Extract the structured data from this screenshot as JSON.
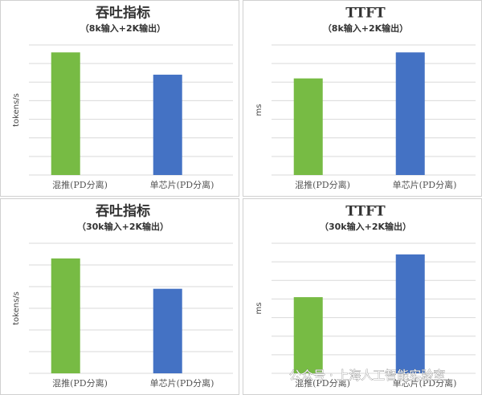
{
  "chart_data": [
    {
      "type": "bar",
      "title": "吞吐指标",
      "subtitle": "（8k输入+2K输出）",
      "y_label": "tokens/s",
      "categories": [
        "混推(PD分离)",
        "单芯片(PD分离)"
      ],
      "values": [
        6.6,
        5.4
      ],
      "colors": [
        "#77bb44",
        "#4472c4"
      ],
      "ylim": [
        0,
        7
      ],
      "grid": true
    },
    {
      "type": "bar",
      "title": "TTFT",
      "subtitle": "（8k输入+2K输出）",
      "y_label": "ms",
      "categories": [
        "混推(PD分离)",
        "单芯片(PD分离)"
      ],
      "values": [
        5.2,
        6.6
      ],
      "colors": [
        "#77bb44",
        "#4472c4"
      ],
      "ylim": [
        0,
        7
      ],
      "grid": true
    },
    {
      "type": "bar",
      "title": "吞吐指标",
      "subtitle": "（30k输入+2K输出）",
      "y_label": "tokens/s",
      "categories": [
        "混推(PD分离)",
        "单芯片(PD分离)"
      ],
      "values": [
        5.3,
        3.9
      ],
      "colors": [
        "#77bb44",
        "#4472c4"
      ],
      "ylim": [
        0,
        6
      ],
      "grid": true
    },
    {
      "type": "bar",
      "title": "TTFT",
      "subtitle": "（30k输入+2K输出）",
      "y_label": "ms",
      "categories": [
        "混推(PD分离)",
        "单芯片(PD分离)"
      ],
      "values": [
        4.1,
        6.4
      ],
      "colors": [
        "#77bb44",
        "#4472c4"
      ],
      "ylim": [
        0,
        7
      ],
      "grid": true
    }
  ],
  "watermark": "公众号 · 上海人工智能实验室"
}
